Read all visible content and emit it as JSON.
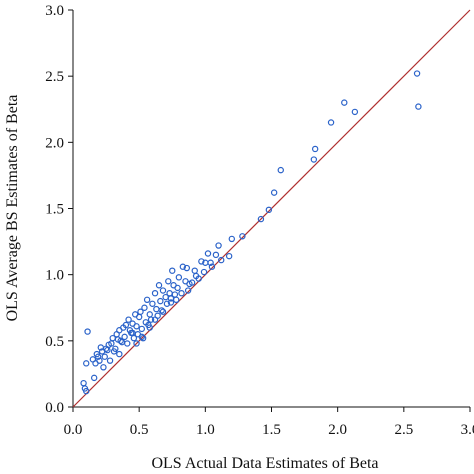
{
  "chart_data": {
    "type": "scatter",
    "title": "",
    "xlabel": "OLS Actual Data Estimates of Beta",
    "ylabel": "OLS Average BS Estimates of Beta",
    "xlim": [
      0.0,
      3.0
    ],
    "ylim": [
      0.0,
      3.0
    ],
    "x_ticks": [
      "0.0",
      "0.5",
      "1.0",
      "1.5",
      "2.0",
      "2.5",
      "3.0"
    ],
    "y_ticks": [
      "0.0",
      "0.5",
      "1.0",
      "1.5",
      "2.0",
      "2.5",
      "3.0"
    ],
    "grid": false,
    "legend": "none",
    "reference_line": {
      "type": "45-degree",
      "x": [
        0.0,
        3.0
      ],
      "y": [
        0.0,
        3.0
      ],
      "color": "#b03030"
    },
    "marker": {
      "shape": "open-circle",
      "color": "#2a62c9"
    },
    "series": [
      {
        "x": [
          0.08,
          0.09,
          0.1,
          0.11,
          0.15,
          0.16,
          0.17,
          0.18,
          0.19,
          0.2,
          0.21,
          0.22,
          0.23,
          0.24,
          0.25,
          0.26,
          0.27,
          0.28,
          0.29,
          0.3,
          0.31,
          0.32,
          0.33,
          0.34,
          0.35,
          0.36,
          0.37,
          0.38,
          0.39,
          0.4,
          0.41,
          0.42,
          0.43,
          0.44,
          0.45,
          0.46,
          0.47,
          0.48,
          0.49,
          0.5,
          0.51,
          0.52,
          0.53,
          0.54,
          0.55,
          0.56,
          0.57,
          0.58,
          0.59,
          0.6,
          0.62,
          0.63,
          0.64,
          0.65,
          0.66,
          0.67,
          0.68,
          0.7,
          0.71,
          0.72,
          0.73,
          0.74,
          0.75,
          0.76,
          0.78,
          0.79,
          0.8,
          0.82,
          0.83,
          0.85,
          0.86,
          0.87,
          0.88,
          0.9,
          0.92,
          0.93,
          0.95,
          0.97,
          0.99,
          1.0,
          1.02,
          1.04,
          1.05,
          1.08,
          1.1,
          1.12,
          1.18,
          1.2,
          1.28,
          1.42,
          1.48,
          1.52,
          1.57,
          1.82,
          1.83,
          1.95,
          2.05,
          2.13,
          2.6,
          2.61,
          0.1,
          0.35,
          0.45,
          0.48,
          0.52,
          0.58,
          0.62,
          0.68,
          0.74,
          0.77
        ],
        "y": [
          0.18,
          0.14,
          0.12,
          0.57,
          0.36,
          0.22,
          0.33,
          0.4,
          0.38,
          0.35,
          0.45,
          0.42,
          0.3,
          0.38,
          0.44,
          0.43,
          0.47,
          0.35,
          0.48,
          0.52,
          0.42,
          0.44,
          0.55,
          0.51,
          0.58,
          0.5,
          0.49,
          0.6,
          0.53,
          0.62,
          0.48,
          0.66,
          0.58,
          0.56,
          0.63,
          0.52,
          0.7,
          0.61,
          0.55,
          0.68,
          0.72,
          0.59,
          0.52,
          0.75,
          0.64,
          0.81,
          0.62,
          0.7,
          0.66,
          0.78,
          0.86,
          0.74,
          0.69,
          0.92,
          0.8,
          0.73,
          0.88,
          0.83,
          0.78,
          0.95,
          0.86,
          0.82,
          1.03,
          0.92,
          0.81,
          0.9,
          0.98,
          0.86,
          1.06,
          0.95,
          1.05,
          0.88,
          0.93,
          0.94,
          1.03,
          0.99,
          0.97,
          1.1,
          1.02,
          1.09,
          1.16,
          1.09,
          1.06,
          1.15,
          1.22,
          1.11,
          1.14,
          1.27,
          1.29,
          1.42,
          1.49,
          1.62,
          1.79,
          1.87,
          1.95,
          2.15,
          2.3,
          2.23,
          2.52,
          2.27,
          0.33,
          0.4,
          0.56,
          0.48,
          0.53,
          0.6,
          0.66,
          0.72,
          0.79,
          0.85
        ]
      }
    ]
  }
}
